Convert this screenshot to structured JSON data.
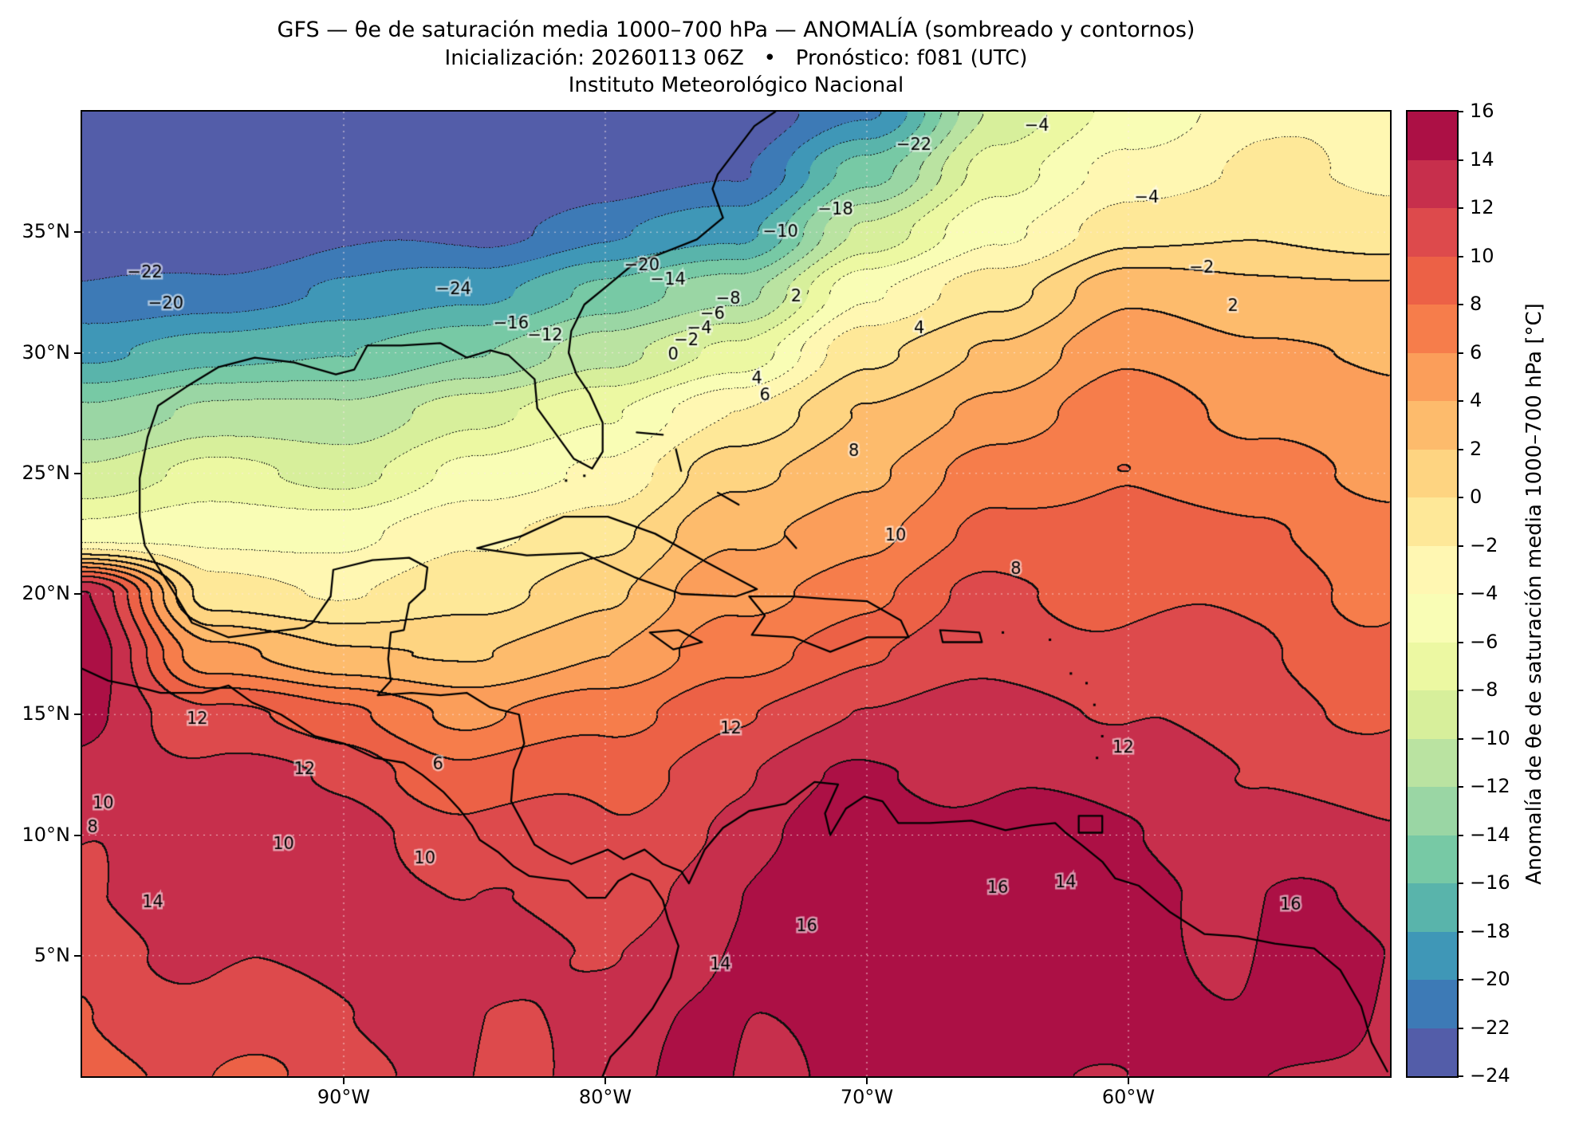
{
  "header": {
    "title": "GFS — θe de saturación media 1000–700 hPa — ANOMALÍA (sombreado y contornos)",
    "subtitle": "Inicialización: 20260113 06Z   •   Pronóstico: f081 (UTC)",
    "institution": "Instituto Meteorológico Nacional"
  },
  "axes": {
    "lat_ticks": [
      {
        "label": "35°N",
        "value": 35
      },
      {
        "label": "30°N",
        "value": 30
      },
      {
        "label": "25°N",
        "value": 25
      },
      {
        "label": "20°N",
        "value": 20
      },
      {
        "label": "15°N",
        "value": 15
      },
      {
        "label": "10°N",
        "value": 10
      },
      {
        "label": "5°N",
        "value": 5
      }
    ],
    "lon_ticks": [
      {
        "label": "90°W",
        "value": 90
      },
      {
        "label": "80°W",
        "value": 80
      },
      {
        "label": "70°W",
        "value": 70
      },
      {
        "label": "60°W",
        "value": 60
      }
    ]
  },
  "colorbar": {
    "label": "Anomalía de θe de saturación media 1000–700 hPa [°C]",
    "min": -24,
    "max": 16,
    "step": 2,
    "ticks": [
      {
        "label": "16",
        "value": 16
      },
      {
        "label": "14",
        "value": 14
      },
      {
        "label": "12",
        "value": 12
      },
      {
        "label": "10",
        "value": 10
      },
      {
        "label": "8",
        "value": 8
      },
      {
        "label": "6",
        "value": 6
      },
      {
        "label": "4",
        "value": 4
      },
      {
        "label": "2",
        "value": 2
      },
      {
        "label": "0",
        "value": 0
      },
      {
        "label": "−2",
        "value": -2
      },
      {
        "label": "−4",
        "value": -4
      },
      {
        "label": "−6",
        "value": -6
      },
      {
        "label": "−8",
        "value": -8
      },
      {
        "label": "−10",
        "value": -10
      },
      {
        "label": "−12",
        "value": -12
      },
      {
        "label": "−14",
        "value": -14
      },
      {
        "label": "−16",
        "value": -16
      },
      {
        "label": "−18",
        "value": -18
      },
      {
        "label": "−20",
        "value": -20
      },
      {
        "label": "−22",
        "value": -22
      },
      {
        "label": "−24",
        "value": -24
      }
    ],
    "band_colors": [
      "#535da9",
      "#3d7ab6",
      "#3f97b7",
      "#59b4ab",
      "#77c9a5",
      "#9ad6a4",
      "#bae3a1",
      "#d7ef9b",
      "#ecf8a2",
      "#f9fdb5",
      "#fff7b2",
      "#fee898",
      "#fed481",
      "#fdbb6c",
      "#fb9e5a",
      "#f67d4b",
      "#ec6146",
      "#dd4a4c",
      "#c72f4c",
      "#ac1045"
    ]
  },
  "chart_data": {
    "type": "heatmap",
    "subtype": "filled-contour-weather-map",
    "title": "GFS — θe de saturación media 1000–700 hPa — ANOMALÍA (sombreado y contornos)",
    "units": "°C",
    "lon_w_range": [
      100,
      50
    ],
    "lat_range": [
      40,
      0
    ],
    "contour_interval": 2,
    "contour_style": {
      "negative": "dotted",
      "zero_and_positive": "solid"
    },
    "grid_lons_w": [
      100,
      95,
      90,
      85,
      80,
      75,
      70,
      65,
      60,
      55,
      50
    ],
    "grid_lats": [
      40,
      37.5,
      35,
      32.5,
      30,
      27.5,
      25,
      22.5,
      20,
      17.5,
      15,
      12.5,
      10,
      7.5,
      5,
      2.5,
      0
    ],
    "anomaly_values": [
      [
        -24,
        -24,
        -24,
        -24,
        -24,
        -24,
        -20,
        -10,
        -5,
        -3,
        -2
      ],
      [
        -24,
        -24,
        -24,
        -24,
        -24,
        -22,
        -15,
        -7,
        -3,
        -2,
        -2
      ],
      [
        -24,
        -24,
        -23,
        -22,
        -21,
        -18,
        -10,
        -4,
        -1,
        0,
        -1
      ],
      [
        -22,
        -21,
        -20,
        -18,
        -16,
        -12,
        -5,
        0,
        3,
        3,
        2
      ],
      [
        -18,
        -17,
        -16,
        -14,
        -11,
        -7,
        -1,
        3,
        5,
        5,
        3
      ],
      [
        -13,
        -12,
        -11,
        -9,
        -6,
        -2,
        2,
        5,
        7,
        6,
        4
      ],
      [
        -9,
        -8,
        -8,
        -6,
        -3,
        1,
        4,
        7,
        8,
        7,
        5
      ],
      [
        -5,
        -5,
        -4,
        -3,
        0,
        3,
        6,
        8,
        9,
        8,
        7
      ],
      [
        14,
        -1,
        -2,
        -1,
        2,
        5,
        8,
        10,
        10,
        9,
        8
      ],
      [
        15,
        5,
        2,
        2,
        4,
        7,
        10,
        11,
        11,
        10,
        9
      ],
      [
        14,
        11,
        8,
        6,
        7,
        10,
        12,
        13,
        12,
        11,
        10
      ],
      [
        13,
        13,
        11,
        9,
        9,
        12,
        14,
        14,
        13,
        12,
        11
      ],
      [
        12,
        13,
        13,
        11,
        10,
        13,
        15,
        15,
        14,
        13,
        12
      ],
      [
        12,
        13,
        13,
        12,
        11,
        14,
        16,
        15,
        15,
        14,
        13
      ],
      [
        11,
        12,
        13,
        13,
        12,
        14,
        16,
        16,
        15,
        14,
        14
      ],
      [
        10,
        11,
        12,
        12,
        13,
        14,
        15,
        15,
        15,
        14,
        14
      ],
      [
        9,
        10,
        11,
        12,
        13,
        14,
        15,
        15,
        14,
        14,
        14
      ]
    ],
    "contour_labels": [
      {
        "text": "−24",
        "lon_w": 85.8,
        "lat": 32.6
      },
      {
        "text": "−22",
        "lon_w": 97.6,
        "lat": 33.3
      },
      {
        "text": "−22",
        "lon_w": 68.2,
        "lat": 38.6
      },
      {
        "text": "−20",
        "lon_w": 78.6,
        "lat": 33.6
      },
      {
        "text": "−20",
        "lon_w": 96.8,
        "lat": 32.0
      },
      {
        "text": "−18",
        "lon_w": 71.2,
        "lat": 35.9
      },
      {
        "text": "−16",
        "lon_w": 83.6,
        "lat": 31.2
      },
      {
        "text": "−14",
        "lon_w": 77.6,
        "lat": 33.0
      },
      {
        "text": "−12",
        "lon_w": 82.3,
        "lat": 30.7
      },
      {
        "text": "−10",
        "lon_w": 73.3,
        "lat": 35.0
      },
      {
        "text": "−8",
        "lon_w": 75.3,
        "lat": 32.2
      },
      {
        "text": "−6",
        "lon_w": 75.9,
        "lat": 31.6
      },
      {
        "text": "−4",
        "lon_w": 76.4,
        "lat": 31.0
      },
      {
        "text": "−4",
        "lon_w": 59.3,
        "lat": 36.4
      },
      {
        "text": "−4",
        "lon_w": 63.5,
        "lat": 39.4
      },
      {
        "text": "−2",
        "lon_w": 76.9,
        "lat": 30.5
      },
      {
        "text": "−2",
        "lon_w": 57.2,
        "lat": 33.5
      },
      {
        "text": "0",
        "lon_w": 77.4,
        "lat": 29.9
      },
      {
        "text": "2",
        "lon_w": 72.7,
        "lat": 32.3
      },
      {
        "text": "2",
        "lon_w": 56.0,
        "lat": 31.9
      },
      {
        "text": "4",
        "lon_w": 74.2,
        "lat": 28.9
      },
      {
        "text": "4",
        "lon_w": 68.0,
        "lat": 31.0
      },
      {
        "text": "6",
        "lon_w": 73.9,
        "lat": 28.2
      },
      {
        "text": "6",
        "lon_w": 86.4,
        "lat": 12.9
      },
      {
        "text": "8",
        "lon_w": 70.5,
        "lat": 25.9
      },
      {
        "text": "8",
        "lon_w": 64.3,
        "lat": 21.0
      },
      {
        "text": "8",
        "lon_w": 99.6,
        "lat": 10.3
      },
      {
        "text": "10",
        "lon_w": 68.9,
        "lat": 22.4
      },
      {
        "text": "10",
        "lon_w": 92.3,
        "lat": 9.6
      },
      {
        "text": "10",
        "lon_w": 99.2,
        "lat": 11.3
      },
      {
        "text": "10",
        "lon_w": 86.9,
        "lat": 9.0
      },
      {
        "text": "12",
        "lon_w": 95.6,
        "lat": 14.8
      },
      {
        "text": "12",
        "lon_w": 91.5,
        "lat": 12.7
      },
      {
        "text": "12",
        "lon_w": 75.2,
        "lat": 14.4
      },
      {
        "text": "12",
        "lon_w": 60.2,
        "lat": 13.6
      },
      {
        "text": "14",
        "lon_w": 97.3,
        "lat": 7.2
      },
      {
        "text": "14",
        "lon_w": 75.6,
        "lat": 4.6
      },
      {
        "text": "14",
        "lon_w": 62.4,
        "lat": 8.0
      },
      {
        "text": "16",
        "lon_w": 72.3,
        "lat": 6.2
      },
      {
        "text": "16",
        "lon_w": 65.0,
        "lat": 7.8
      },
      {
        "text": "16",
        "lon_w": 53.8,
        "lat": 7.1
      }
    ],
    "coastlines": [
      [
        [
          73.5,
          40
        ],
        [
          74.3,
          39.4
        ],
        [
          75,
          38.4
        ],
        [
          75.7,
          37.4
        ],
        [
          75.9,
          36.8
        ],
        [
          75.5,
          35.6
        ],
        [
          76.5,
          34.7
        ],
        [
          77.9,
          34.1
        ],
        [
          78.9,
          33.7
        ],
        [
          79.9,
          32.8
        ],
        [
          80.8,
          32
        ],
        [
          81.3,
          30.9
        ],
        [
          81.4,
          30
        ],
        [
          81.1,
          29.1
        ],
        [
          80.6,
          28.3
        ],
        [
          80.1,
          27.1
        ],
        [
          80.1,
          25.9
        ],
        [
          80.5,
          25.2
        ],
        [
          81.2,
          25.6
        ],
        [
          81.8,
          26.5
        ],
        [
          82.6,
          27.7
        ],
        [
          82.7,
          28.9
        ],
        [
          83.7,
          29.9
        ],
        [
          84.4,
          30.1
        ],
        [
          85.3,
          29.8
        ],
        [
          86.3,
          30.4
        ],
        [
          87.8,
          30.3
        ],
        [
          89.1,
          30.3
        ],
        [
          89.6,
          29.3
        ],
        [
          90.3,
          29.1
        ],
        [
          91.9,
          29.6
        ],
        [
          93.4,
          29.8
        ],
        [
          94.8,
          29.4
        ],
        [
          96,
          28.6
        ],
        [
          97.1,
          27.8
        ],
        [
          97.5,
          26.5
        ],
        [
          97.8,
          24.8
        ],
        [
          97.8,
          23.2
        ],
        [
          97.6,
          22
        ],
        [
          96.4,
          19.9
        ],
        [
          95.8,
          18.8
        ],
        [
          94.4,
          18.2
        ],
        [
          93,
          18.4
        ],
        [
          91.5,
          18.6
        ],
        [
          91.2,
          18.8
        ],
        [
          90.5,
          19.9
        ],
        [
          90.4,
          21
        ],
        [
          88.9,
          21.4
        ],
        [
          87.5,
          21.5
        ],
        [
          86.8,
          21.1
        ],
        [
          86.9,
          20.2
        ],
        [
          87.5,
          19.6
        ],
        [
          87.7,
          18.5
        ],
        [
          88.2,
          18.4
        ],
        [
          88.3,
          17.3
        ],
        [
          88.2,
          16.4
        ],
        [
          88.7,
          15.8
        ],
        [
          87.4,
          15.9
        ],
        [
          86.3,
          15.8
        ],
        [
          85.3,
          15.9
        ],
        [
          84.4,
          15.3
        ],
        [
          83.3,
          15
        ],
        [
          83.1,
          13.8
        ],
        [
          83.5,
          12.7
        ],
        [
          83.6,
          11.4
        ],
        [
          82.7,
          9.6
        ],
        [
          82.1,
          9.2
        ],
        [
          81.3,
          8.8
        ],
        [
          80.6,
          9.1
        ],
        [
          79.9,
          9.4
        ],
        [
          79.3,
          9
        ],
        [
          78.5,
          9.4
        ],
        [
          77.8,
          8.8
        ],
        [
          77.1,
          8.5
        ],
        [
          76.8,
          8
        ],
        [
          76.2,
          9.4
        ],
        [
          75.5,
          10.3
        ],
        [
          74.5,
          11
        ],
        [
          73.1,
          11.3
        ],
        [
          72,
          12.2
        ],
        [
          71.1,
          12.1
        ],
        [
          71.6,
          10.9
        ],
        [
          71.4,
          10
        ],
        [
          70.8,
          11.1
        ],
        [
          70.1,
          11.6
        ],
        [
          69.4,
          11.4
        ],
        [
          68.8,
          10.5
        ],
        [
          67.6,
          10.5
        ],
        [
          66,
          10.6
        ],
        [
          64.7,
          10.2
        ],
        [
          63.7,
          10.4
        ],
        [
          62.8,
          10.5
        ],
        [
          62.4,
          10.1
        ],
        [
          61.8,
          9.6
        ],
        [
          61,
          8.9
        ],
        [
          60.5,
          8.2
        ],
        [
          59.6,
          7.9
        ],
        [
          58.4,
          6.8
        ],
        [
          57.1,
          5.9
        ],
        [
          55.8,
          5.8
        ],
        [
          54.4,
          5.5
        ],
        [
          52.9,
          5.3
        ],
        [
          51.9,
          4.4
        ],
        [
          51.1,
          2.9
        ],
        [
          50.7,
          1.4
        ],
        [
          50.1,
          0.2
        ]
      ],
      [
        [
          100,
          16.9
        ],
        [
          99,
          16.4
        ],
        [
          98.1,
          16.2
        ],
        [
          97,
          15.9
        ],
        [
          95.4,
          15.9
        ],
        [
          94.4,
          16.2
        ],
        [
          93.5,
          15.5
        ],
        [
          92.4,
          15
        ],
        [
          91.1,
          14.1
        ],
        [
          90,
          13.8
        ],
        [
          88.8,
          13.2
        ],
        [
          87.7,
          13
        ],
        [
          87,
          12.5
        ],
        [
          86.2,
          11.8
        ],
        [
          85.6,
          11.1
        ],
        [
          85.1,
          10.4
        ],
        [
          84.8,
          9.8
        ],
        [
          84.1,
          9.3
        ],
        [
          83.5,
          8.7
        ],
        [
          82.9,
          8.3
        ],
        [
          82.2,
          8.2
        ],
        [
          81.4,
          8.1
        ],
        [
          80.7,
          7.4
        ],
        [
          80,
          7.4
        ],
        [
          79.5,
          8.1
        ],
        [
          79,
          8.4
        ],
        [
          78.3,
          8.1
        ],
        [
          77.8,
          7.3
        ],
        [
          77.6,
          6.5
        ],
        [
          77.2,
          5.4
        ],
        [
          77.5,
          4.1
        ],
        [
          78.2,
          2.8
        ],
        [
          79,
          1.7
        ],
        [
          79.8,
          0.8
        ],
        [
          80.1,
          0
        ]
      ],
      [
        [
          84.9,
          21.9
        ],
        [
          83.2,
          22.4
        ],
        [
          81.6,
          23.2
        ],
        [
          79.9,
          23.2
        ],
        [
          78.1,
          22.5
        ],
        [
          76.1,
          21.3
        ],
        [
          74.2,
          20.2
        ],
        [
          75,
          19.9
        ],
        [
          77.1,
          20
        ],
        [
          78.9,
          20.7
        ],
        [
          80.9,
          21.7
        ],
        [
          83,
          21.6
        ],
        [
          84.9,
          21.9
        ]
      ],
      [
        [
          74.5,
          19.9
        ],
        [
          72.8,
          19.9
        ],
        [
          71.6,
          19.8
        ],
        [
          70,
          19.7
        ],
        [
          68.7,
          18.9
        ],
        [
          68.4,
          18.2
        ],
        [
          70,
          18.2
        ],
        [
          71.4,
          17.6
        ],
        [
          72.8,
          18.2
        ],
        [
          74.4,
          18.3
        ],
        [
          73.9,
          19.1
        ],
        [
          74.5,
          19.9
        ]
      ],
      [
        [
          78.3,
          18.4
        ],
        [
          77.2,
          18.5
        ],
        [
          76.3,
          18
        ],
        [
          77.4,
          17.7
        ],
        [
          78.3,
          18.4
        ]
      ],
      [
        [
          67.2,
          18.5
        ],
        [
          65.7,
          18.4
        ],
        [
          65.6,
          18
        ],
        [
          67.1,
          18
        ],
        [
          67.2,
          18.5
        ]
      ],
      [
        [
          61.9,
          10.8
        ],
        [
          61,
          10.8
        ],
        [
          61,
          10.1
        ],
        [
          61.9,
          10.1
        ],
        [
          61.9,
          10.8
        ]
      ],
      [
        [
          78.8,
          26.7
        ],
        [
          77.8,
          26.6
        ]
      ],
      [
        [
          77.3,
          26
        ],
        [
          77.1,
          25.1
        ]
      ],
      [
        [
          75.7,
          24.2
        ],
        [
          74.9,
          23.7
        ]
      ],
      [
        [
          73.1,
          22.4
        ],
        [
          72.7,
          21.9
        ]
      ]
    ],
    "island_points": [
      [
        61.2,
        13.2
      ],
      [
        61,
        14.1
      ],
      [
        61.3,
        15.4
      ],
      [
        61.6,
        16.3
      ],
      [
        62.2,
        16.7
      ],
      [
        63,
        18.1
      ],
      [
        64.8,
        18.4
      ],
      [
        81.5,
        24.7
      ],
      [
        80.8,
        24.9
      ]
    ]
  }
}
